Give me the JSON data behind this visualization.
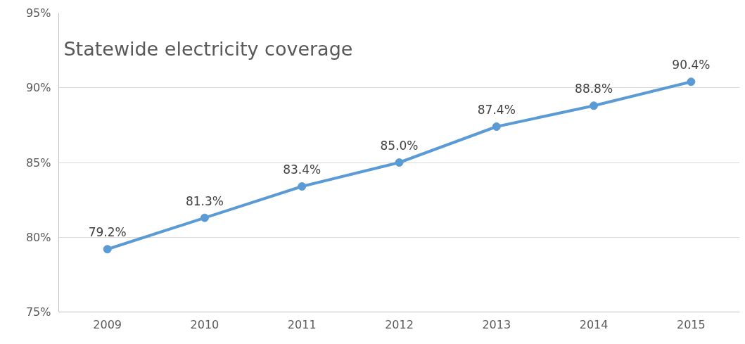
{
  "chart_data": {
    "type": "line",
    "title": "Statewide electricity coverage",
    "categories": [
      "2009",
      "2010",
      "2011",
      "2012",
      "2013",
      "2014",
      "2015"
    ],
    "series": [
      {
        "color": "#5b9bd5",
        "values": [
          79.2,
          81.3,
          83.4,
          85.0,
          87.4,
          88.8,
          90.4
        ],
        "value_labels": [
          "79.2%",
          "81.3%",
          "83.4%",
          "85.0%",
          "87.4%",
          "88.8%",
          "90.4%"
        ]
      }
    ],
    "ylim": [
      75,
      95
    ],
    "yticks": [
      {
        "value": 75,
        "label": "75%"
      },
      {
        "value": 80,
        "label": "80%"
      },
      {
        "value": 85,
        "label": "85%"
      },
      {
        "value": 90,
        "label": "90%"
      },
      {
        "value": 95,
        "label": "95%"
      }
    ],
    "grid": "y",
    "marker": "circle",
    "line_style": "solid"
  }
}
